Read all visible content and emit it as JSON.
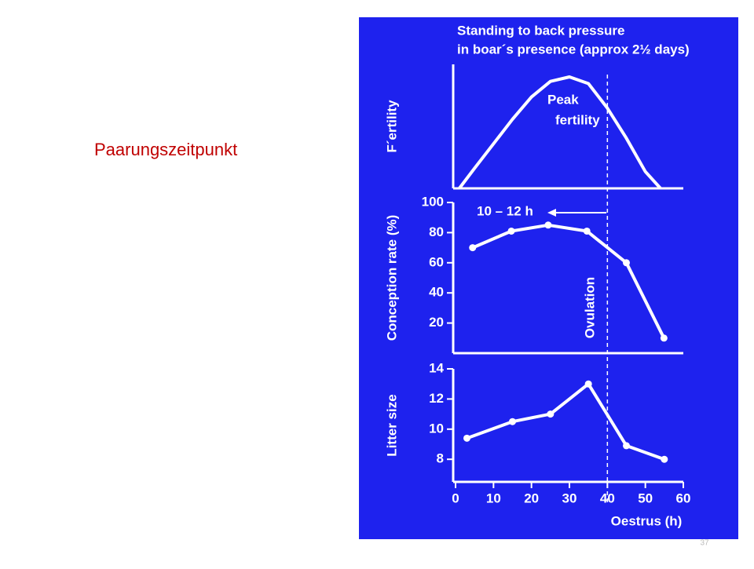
{
  "slide_title": "Paarungszeitpunkt",
  "page_number": "37",
  "chart_data": [
    {
      "type": "line",
      "title": [
        "Standing to back pressure",
        "in boar´s presence (approx 2½ days)"
      ],
      "y_label": "F´ertility",
      "annotation": [
        "Peak",
        "fertility"
      ],
      "x": [
        1,
        5,
        10,
        15,
        20,
        25,
        30,
        35,
        40,
        45,
        50,
        54
      ],
      "values": [
        0,
        18,
        40,
        62,
        82,
        96,
        100,
        94,
        72,
        45,
        15,
        0
      ],
      "xlim": [
        0,
        60
      ],
      "ylim": [
        0,
        100
      ],
      "color": "#ffffff",
      "markers": false
    },
    {
      "type": "line",
      "y_label": "Conception rate (%)",
      "annotation": "10 – 12 h",
      "vline": {
        "label": "Ovulation",
        "x": 40
      },
      "x": [
        4.5,
        14.7,
        24.4,
        34.6,
        45,
        54.9
      ],
      "values": [
        70,
        81,
        85,
        81,
        60,
        10
      ],
      "xlim": [
        0,
        60
      ],
      "ylim": [
        0,
        100
      ],
      "yticks": [
        20,
        40,
        60,
        80,
        100
      ],
      "color": "#ffffff",
      "markers": true
    },
    {
      "type": "line",
      "y_label": "Litter size",
      "x_label": "Oestrus (h)",
      "x": [
        3,
        15,
        25,
        35,
        45,
        55
      ],
      "values": [
        9.4,
        10.5,
        11,
        13,
        8.9,
        8
      ],
      "xlim": [
        0,
        60
      ],
      "xticks": [
        0,
        10,
        20,
        30,
        40,
        50,
        60
      ],
      "ylim": [
        6.5,
        14
      ],
      "yticks": [
        8,
        10,
        12,
        14
      ],
      "color": "#ffffff",
      "markers": true
    }
  ]
}
